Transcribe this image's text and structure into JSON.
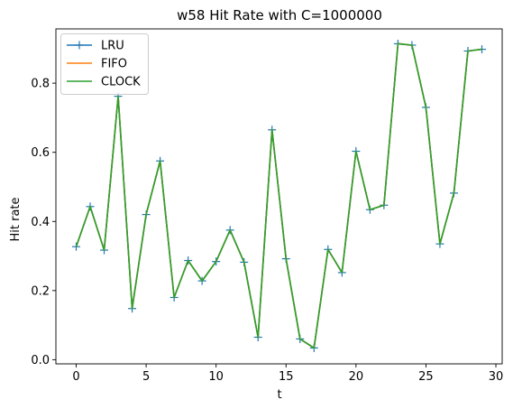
{
  "chart_data": {
    "type": "line",
    "title": "w58 Hit Rate with C=1000000",
    "xlabel": "t",
    "ylabel": "Hit rate",
    "xlim": [
      -1.45,
      30.45
    ],
    "ylim": [
      -0.012,
      0.957
    ],
    "xticks": [
      0,
      5,
      10,
      15,
      20,
      25,
      30
    ],
    "yticks": [
      0.0,
      0.2,
      0.4,
      0.6,
      0.8
    ],
    "xtick_labels": [
      "0",
      "5",
      "10",
      "15",
      "20",
      "25",
      "30"
    ],
    "ytick_labels": [
      "0.0",
      "0.2",
      "0.4",
      "0.6",
      "0.8"
    ],
    "grid": false,
    "legend_position": "top-left",
    "x": [
      0,
      1,
      2,
      3,
      4,
      5,
      6,
      7,
      8,
      9,
      10,
      11,
      12,
      13,
      14,
      15,
      16,
      17,
      18,
      19,
      20,
      21,
      22,
      23,
      24,
      25,
      26,
      27,
      28,
      29
    ],
    "series": [
      {
        "name": "LRU",
        "color": "#1f77b4",
        "marker": "+",
        "values": [
          0.327,
          0.443,
          0.317,
          0.762,
          0.148,
          0.42,
          0.575,
          0.18,
          0.287,
          0.228,
          0.284,
          0.375,
          0.282,
          0.065,
          0.665,
          0.292,
          0.06,
          0.034,
          0.319,
          0.252,
          0.603,
          0.434,
          0.447,
          0.914,
          0.91,
          0.73,
          0.335,
          0.482,
          0.893,
          0.898
        ]
      },
      {
        "name": "FIFO",
        "color": "#ff7f0e",
        "marker": "none",
        "values": [
          0.327,
          0.443,
          0.317,
          0.762,
          0.148,
          0.42,
          0.575,
          0.18,
          0.287,
          0.228,
          0.284,
          0.375,
          0.282,
          0.065,
          0.665,
          0.292,
          0.06,
          0.034,
          0.319,
          0.252,
          0.603,
          0.434,
          0.447,
          0.914,
          0.91,
          0.73,
          0.335,
          0.482,
          0.893,
          0.898
        ]
      },
      {
        "name": "CLOCK",
        "color": "#2ca02c",
        "marker": "none",
        "values": [
          0.327,
          0.443,
          0.317,
          0.762,
          0.148,
          0.42,
          0.575,
          0.18,
          0.287,
          0.228,
          0.284,
          0.375,
          0.282,
          0.065,
          0.665,
          0.292,
          0.06,
          0.034,
          0.319,
          0.252,
          0.603,
          0.434,
          0.447,
          0.914,
          0.91,
          0.73,
          0.335,
          0.482,
          0.893,
          0.898
        ]
      }
    ]
  }
}
